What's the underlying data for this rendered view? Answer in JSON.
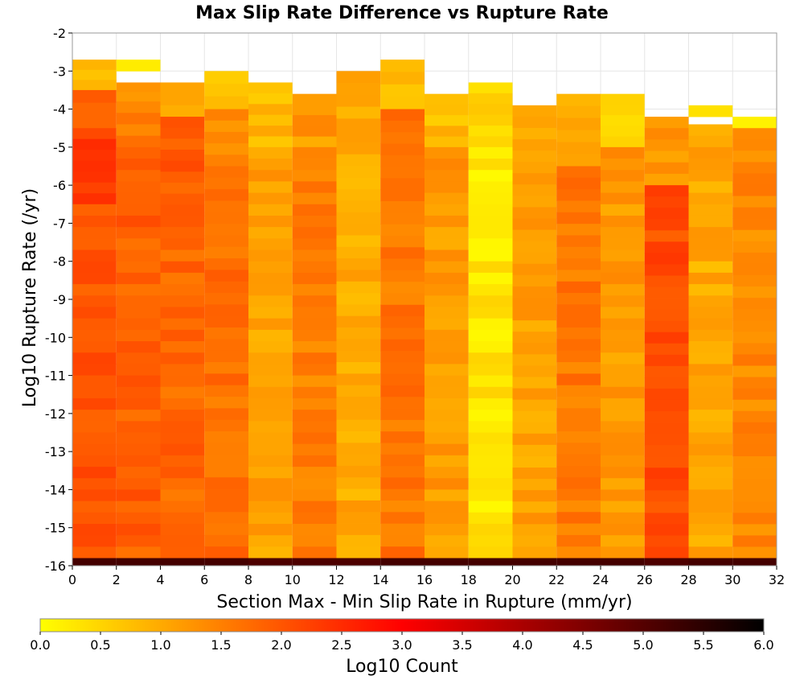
{
  "chart_data": {
    "type": "heatmap",
    "title": "Max Slip Rate Difference vs Rupture Rate",
    "xlabel": "Section Max - Min Slip Rate in Rupture (mm/yr)",
    "ylabel": "Log10 Rupture Rate (/yr)",
    "xlim": [
      0,
      32
    ],
    "ylim": [
      -16,
      -2
    ],
    "x_ticks": [
      0,
      2,
      4,
      6,
      8,
      10,
      12,
      14,
      16,
      18,
      20,
      22,
      24,
      26,
      28,
      30,
      32
    ],
    "y_ticks": [
      -2,
      -3,
      -4,
      -5,
      -6,
      -7,
      -8,
      -9,
      -10,
      -11,
      -12,
      -13,
      -14,
      -15,
      -16
    ],
    "x_bin_width": 2,
    "y_bin_height": 0.3,
    "grid": true,
    "colorbar": {
      "label": "Log10 Count",
      "range": [
        0.0,
        6.0
      ],
      "ticks": [
        "0.0",
        "0.5",
        "1.0",
        "1.5",
        "2.0",
        "2.5",
        "3.0",
        "3.5",
        "4.0",
        "4.5",
        "5.0",
        "5.5",
        "6.0"
      ],
      "stops": [
        "#ffff00",
        "#ffaa00",
        "#ff5500",
        "#ff0000",
        "#aa0000",
        "#550000",
        "#000000"
      ]
    },
    "columns": [
      {
        "x_start": 0,
        "top": -2.7,
        "bottom_value": 5.2,
        "segments": [
          [
            -2.7,
            -3.5,
            0.8
          ],
          [
            -3.5,
            -4.5,
            1.7
          ],
          [
            -4.5,
            -6.5,
            2.3
          ],
          [
            -6.5,
            -15.8,
            2.0
          ]
        ]
      },
      {
        "x_start": 2,
        "top": -2.7,
        "bottom_value": 5.2,
        "segments": [
          [
            -2.7,
            -3.0,
            0.2
          ],
          [
            -3.3,
            -3.8,
            1.1
          ],
          [
            -3.8,
            -5.0,
            1.6
          ],
          [
            -5.0,
            -15.8,
            1.9
          ]
        ]
      },
      {
        "x_start": 4,
        "top": -3.3,
        "bottom_value": 5.2,
        "segments": [
          [
            -3.3,
            -4.2,
            1.0
          ],
          [
            -4.2,
            -6.8,
            1.9
          ],
          [
            -6.8,
            -15.8,
            1.8
          ]
        ]
      },
      {
        "x_start": 6,
        "top": -3.0,
        "bottom_value": 5.2,
        "segments": [
          [
            -3.0,
            -4.0,
            0.6
          ],
          [
            -4.0,
            -5.5,
            1.4
          ],
          [
            -5.5,
            -15.8,
            1.7
          ]
        ]
      },
      {
        "x_start": 8,
        "top": -3.3,
        "bottom_value": 5.1,
        "segments": [
          [
            -3.3,
            -5.0,
            0.8
          ],
          [
            -5.0,
            -15.8,
            1.1
          ]
        ]
      },
      {
        "x_start": 10,
        "top": -3.6,
        "bottom_value": 5.1,
        "segments": [
          [
            -3.6,
            -5.0,
            1.2
          ],
          [
            -5.0,
            -15.8,
            1.5
          ]
        ]
      },
      {
        "x_start": 12,
        "top": -3.0,
        "bottom_value": 5.1,
        "segments": [
          [
            -3.0,
            -5.5,
            1.0
          ],
          [
            -5.5,
            -15.8,
            1.0
          ]
        ]
      },
      {
        "x_start": 14,
        "top": -2.7,
        "bottom_value": 5.2,
        "segments": [
          [
            -2.7,
            -4.0,
            0.7
          ],
          [
            -4.0,
            -15.8,
            1.6
          ]
        ]
      },
      {
        "x_start": 16,
        "top": -3.6,
        "bottom_value": 5.2,
        "segments": [
          [
            -3.6,
            -5.0,
            0.8
          ],
          [
            -5.0,
            -15.8,
            1.2
          ]
        ]
      },
      {
        "x_start": 18,
        "top": -3.3,
        "bottom_value": 5.2,
        "segments": [
          [
            -3.3,
            -5.0,
            0.5
          ],
          [
            -5.0,
            -15.8,
            0.3
          ]
        ]
      },
      {
        "x_start": 20,
        "top": -3.9,
        "bottom_value": 5.2,
        "segments": [
          [
            -3.9,
            -15.8,
            1.1
          ]
        ]
      },
      {
        "x_start": 22,
        "top": -3.6,
        "bottom_value": 5.2,
        "segments": [
          [
            -3.6,
            -5.5,
            1.0
          ],
          [
            -5.5,
            -15.8,
            1.6
          ]
        ]
      },
      {
        "x_start": 24,
        "top": -3.6,
        "bottom_value": 5.2,
        "segments": [
          [
            -3.6,
            -5.0,
            0.6
          ],
          [
            -5.0,
            -15.8,
            1.2
          ]
        ]
      },
      {
        "x_start": 26,
        "top": -4.2,
        "bottom_value": 5.1,
        "segments": [
          [
            -4.2,
            -6.0,
            1.2
          ],
          [
            -6.0,
            -15.8,
            2.1
          ]
        ]
      },
      {
        "x_start": 28,
        "top": -3.9,
        "bottom_value": 5.2,
        "segments": [
          [
            -3.9,
            -4.2,
            0.6
          ],
          [
            -4.4,
            -6.5,
            1.0
          ],
          [
            -6.5,
            -15.8,
            1.0
          ]
        ]
      },
      {
        "x_start": 30,
        "top": -4.2,
        "bottom_value": 5.2,
        "segments": [
          [
            -4.2,
            -4.5,
            0.1
          ],
          [
            -4.5,
            -15.8,
            1.4
          ]
        ]
      }
    ]
  }
}
